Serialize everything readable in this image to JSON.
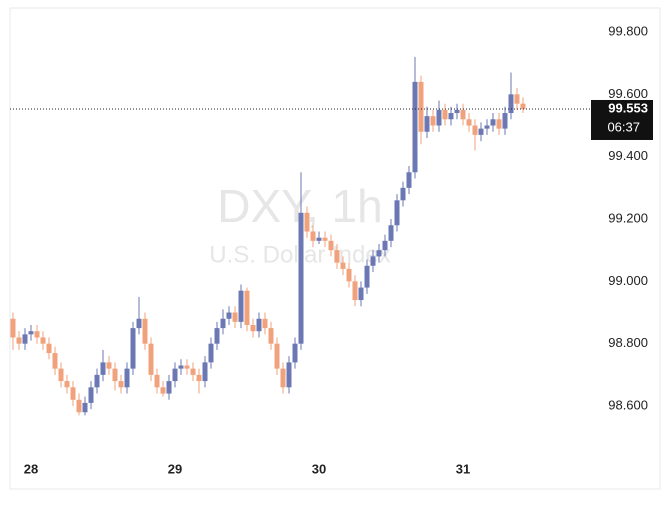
{
  "chart_data": {
    "type": "candlestick",
    "watermark_title": "DXY, 1h",
    "watermark_subtitle": "U.S. Dollar Index",
    "categories": [
      null,
      null,
      null,
      "28",
      null,
      null,
      null,
      null,
      null,
      null,
      null,
      null,
      null,
      null,
      null,
      null,
      null,
      null,
      null,
      null,
      null,
      null,
      null,
      null,
      null,
      null,
      null,
      "29",
      null,
      null,
      null,
      null,
      null,
      null,
      null,
      null,
      null,
      null,
      null,
      null,
      null,
      null,
      null,
      null,
      null,
      null,
      null,
      null,
      null,
      null,
      null,
      "30",
      null,
      null,
      null,
      null,
      null,
      null,
      null,
      null,
      null,
      null,
      null,
      null,
      null,
      null,
      null,
      null,
      null,
      null,
      null,
      null,
      null,
      null,
      null,
      "31",
      null,
      null,
      null,
      null,
      null,
      null,
      null,
      null,
      null,
      null
    ],
    "open": [
      98.88,
      98.82,
      98.8,
      98.83,
      98.84,
      98.82,
      98.8,
      98.77,
      98.72,
      98.68,
      98.66,
      98.62,
      98.58,
      98.61,
      98.66,
      98.7,
      98.74,
      98.72,
      98.68,
      98.66,
      98.72,
      98.85,
      98.88,
      98.8,
      98.7,
      98.66,
      98.64,
      98.68,
      98.72,
      98.73,
      98.72,
      98.7,
      98.68,
      98.74,
      98.8,
      98.85,
      98.88,
      98.9,
      98.87,
      98.97,
      98.86,
      98.84,
      98.88,
      98.85,
      98.8,
      98.72,
      98.66,
      98.74,
      98.8,
      99.22,
      99.16,
      99.13,
      99.14,
      99.13,
      99.1,
      99.06,
      99.04,
      99.0,
      98.94,
      98.98,
      99.05,
      99.08,
      99.1,
      99.13,
      99.18,
      99.26,
      99.3,
      99.35,
      99.64,
      99.48,
      99.53,
      99.5,
      99.55,
      99.52,
      99.54,
      99.55,
      99.52,
      99.5,
      99.47,
      99.49,
      99.5,
      99.52,
      99.49,
      99.54,
      99.6,
      99.57
    ],
    "close": [
      98.82,
      98.8,
      98.83,
      98.84,
      98.82,
      98.8,
      98.77,
      98.72,
      98.68,
      98.66,
      98.62,
      98.58,
      98.61,
      98.66,
      98.7,
      98.74,
      98.72,
      98.68,
      98.66,
      98.72,
      98.85,
      98.88,
      98.8,
      98.7,
      98.66,
      98.64,
      98.68,
      98.72,
      98.73,
      98.72,
      98.7,
      98.68,
      98.74,
      98.8,
      98.85,
      98.88,
      98.9,
      98.87,
      98.97,
      98.86,
      98.84,
      98.88,
      98.85,
      98.8,
      98.72,
      98.66,
      98.74,
      98.8,
      99.22,
      99.16,
      99.13,
      99.14,
      99.13,
      99.1,
      99.06,
      99.04,
      99.0,
      98.94,
      98.98,
      99.05,
      99.08,
      99.1,
      99.13,
      99.18,
      99.26,
      99.3,
      99.35,
      99.64,
      99.48,
      99.53,
      99.5,
      99.55,
      99.52,
      99.54,
      99.55,
      99.52,
      99.5,
      99.47,
      99.49,
      99.5,
      99.52,
      99.49,
      99.54,
      99.6,
      99.57,
      99.553
    ],
    "high": [
      98.9,
      98.84,
      98.85,
      98.86,
      98.86,
      98.84,
      98.82,
      98.79,
      98.74,
      98.7,
      98.68,
      98.64,
      98.63,
      98.68,
      98.72,
      98.78,
      98.76,
      98.74,
      98.7,
      98.74,
      98.87,
      98.95,
      98.9,
      98.82,
      98.72,
      98.68,
      98.7,
      98.74,
      98.75,
      98.75,
      98.74,
      98.72,
      98.76,
      98.82,
      98.87,
      98.91,
      98.92,
      98.92,
      98.99,
      98.98,
      98.88,
      98.9,
      98.9,
      98.87,
      98.82,
      98.74,
      98.76,
      98.82,
      99.35,
      99.24,
      99.18,
      99.16,
      99.16,
      99.15,
      99.12,
      99.08,
      99.06,
      99.02,
      99.0,
      99.07,
      99.1,
      99.12,
      99.15,
      99.2,
      99.28,
      99.32,
      99.37,
      99.72,
      99.66,
      99.56,
      99.55,
      99.58,
      99.57,
      99.56,
      99.57,
      99.57,
      99.54,
      99.52,
      99.51,
      99.52,
      99.54,
      99.54,
      99.56,
      99.67,
      99.62,
      99.59
    ],
    "low": [
      98.78,
      98.78,
      98.78,
      98.81,
      98.8,
      98.78,
      98.75,
      98.7,
      98.66,
      98.64,
      98.6,
      98.57,
      98.57,
      98.59,
      98.64,
      98.68,
      98.7,
      98.65,
      98.64,
      98.64,
      98.7,
      98.83,
      98.78,
      98.68,
      98.64,
      98.63,
      98.62,
      98.66,
      98.7,
      98.7,
      98.68,
      98.64,
      98.66,
      98.72,
      98.78,
      98.83,
      98.86,
      98.85,
      98.85,
      98.84,
      98.82,
      98.82,
      98.83,
      98.78,
      98.7,
      98.64,
      98.64,
      98.72,
      98.78,
      99.14,
      99.11,
      99.12,
      99.11,
      99.08,
      99.04,
      99.02,
      98.98,
      98.92,
      98.92,
      98.96,
      99.03,
      99.06,
      99.08,
      99.11,
      99.16,
      99.24,
      99.28,
      99.33,
      99.44,
      99.46,
      99.48,
      99.48,
      99.5,
      99.5,
      99.52,
      99.5,
      99.48,
      99.42,
      99.45,
      99.47,
      99.48,
      99.47,
      99.47,
      99.52,
      99.55,
      99.54
    ],
    "up_color": "#6b78b4",
    "down_color": "#f0a27c",
    "ylim": [
      98.337,
      99.877
    ],
    "yticks": [
      {
        "value": 98.6,
        "label": "98.600"
      },
      {
        "value": 98.8,
        "label": "98.800"
      },
      {
        "value": 99.0,
        "label": "99.000"
      },
      {
        "value": 99.2,
        "label": "99.200"
      },
      {
        "value": 99.4,
        "label": "99.400"
      },
      {
        "value": 99.6,
        "label": "99.600"
      },
      {
        "value": 99.8,
        "label": "99.800"
      }
    ],
    "last_price": 99.553,
    "countdown": "06:37"
  }
}
